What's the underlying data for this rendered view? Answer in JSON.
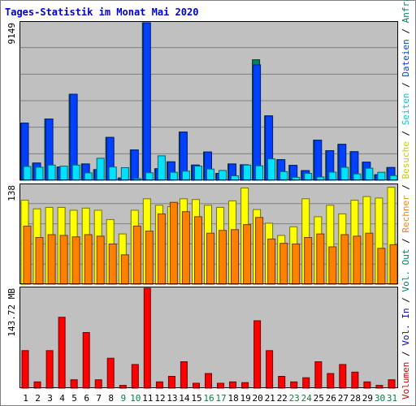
{
  "chart_data": {
    "type": "bar",
    "title": "Tages-Statistik im Monat Mai 2020",
    "categories": [
      "1",
      "2",
      "3",
      "4",
      "5",
      "6",
      "7",
      "8",
      "9",
      "10",
      "11",
      "12",
      "13",
      "14",
      "15",
      "16",
      "17",
      "18",
      "19",
      "20",
      "21",
      "22",
      "23",
      "24",
      "25",
      "26",
      "27",
      "28",
      "29",
      "30",
      "31"
    ],
    "weekend_days": [
      "9",
      "10",
      "16",
      "17",
      "23",
      "24",
      "30",
      "31"
    ],
    "panels": [
      {
        "id": "requests",
        "ymax_label": "9149",
        "ymax": 9149,
        "series": [
          {
            "name": "Anfragen",
            "color": "#008060",
            "values": [
              3320,
              1000,
              3560,
              770,
              5000,
              950,
              620,
              2490,
              130,
              1760,
              9149,
              670,
              1070,
              2800,
              880,
              1640,
              400,
              950,
              900,
              7000,
              3740,
              1200,
              870,
              560,
              2330,
              1720,
              2090,
              1660,
              1050,
              320,
              740
            ]
          },
          {
            "name": "Dateien",
            "color": "#0040ff",
            "values": [
              3320,
              1000,
              3560,
              770,
              5000,
              950,
              620,
              2490,
              130,
              1760,
              9149,
              670,
              1070,
              2800,
              880,
              1640,
              400,
              950,
              900,
              6700,
              3740,
              1200,
              870,
              560,
              2330,
              1720,
              2090,
              1660,
              1050,
              320,
              740
            ]
          },
          {
            "name": "Seiten",
            "color": "#00e0ff",
            "values": [
              800,
              760,
              880,
              820,
              880,
              430,
              1280,
              770,
              730,
              100,
              440,
              1420,
              460,
              530,
              820,
              650,
              570,
              260,
              880,
              840,
              1240,
              500,
              170,
              400,
              190,
              470,
              750,
              370,
              700,
              460,
              270
            ]
          }
        ]
      },
      {
        "id": "visits",
        "ymax_label": "138",
        "ymax": 138,
        "series": [
          {
            "name": "Besuche",
            "color": "#ffff00",
            "values": [
              117,
              105,
              107,
              107,
              103,
              106,
              103,
              90,
              70,
              103,
              119,
              110,
              108,
              119,
              118,
              110,
              107,
              116,
              134,
              104,
              85,
              68,
              80,
              119,
              94,
              110,
              98,
              117,
              122,
              120,
              135
            ]
          },
          {
            "name": "Rechner",
            "color": "#ff8000",
            "values": [
              81,
              65,
              69,
              68,
              66,
              69,
              67,
              56,
              41,
              81,
              74,
              98,
              114,
              101,
              94,
              71,
              75,
              76,
              83,
              93,
              63,
              57,
              56,
              65,
              70,
              52,
              69,
              67,
              71,
              50,
              55
            ]
          }
        ]
      },
      {
        "id": "volume",
        "ymax_label": "143.72 MB",
        "ymax": 143.72,
        "series": [
          {
            "name": "Volumen",
            "color": "#ff0000",
            "values": [
              54,
              9,
              54,
              102,
              12,
              80,
              12,
              43,
              4,
              34,
              143.72,
              9,
              17,
              38,
              7,
              21,
              7,
              9,
              8,
              97,
              54,
              17,
              9,
              15,
              38,
              21,
              34,
              23,
              9,
              4,
              12
            ]
          }
        ]
      }
    ],
    "legend": {
      "placement": "right-vertical",
      "parts": [
        {
          "text": "Volumen",
          "color": "#cc0000"
        },
        {
          "text": " / ",
          "color": "#000000"
        },
        {
          "text": "Vol. In",
          "color": "#0000cc"
        },
        {
          "text": " / ",
          "color": "#000000"
        },
        {
          "text": "Vol. Out",
          "color": "#008060"
        },
        {
          "text": " / ",
          "color": "#000000"
        },
        {
          "text": "Rechner",
          "color": "#ff8000"
        },
        {
          "text": " / ",
          "color": "#000000"
        },
        {
          "text": "Besuche",
          "color": "#cccc00"
        },
        {
          "text": " / ",
          "color": "#000000"
        },
        {
          "text": "Seiten",
          "color": "#00cccc"
        },
        {
          "text": " / ",
          "color": "#000000"
        },
        {
          "text": "Dateien",
          "color": "#0040ff"
        },
        {
          "text": " / ",
          "color": "#000000"
        },
        {
          "text": "Anfragen",
          "color": "#008060"
        }
      ]
    },
    "colors": {
      "plot_bg": "#c0c0c0",
      "grid": "#808080",
      "weekday_tick": "#000000",
      "weekend_tick": "#008040"
    }
  }
}
